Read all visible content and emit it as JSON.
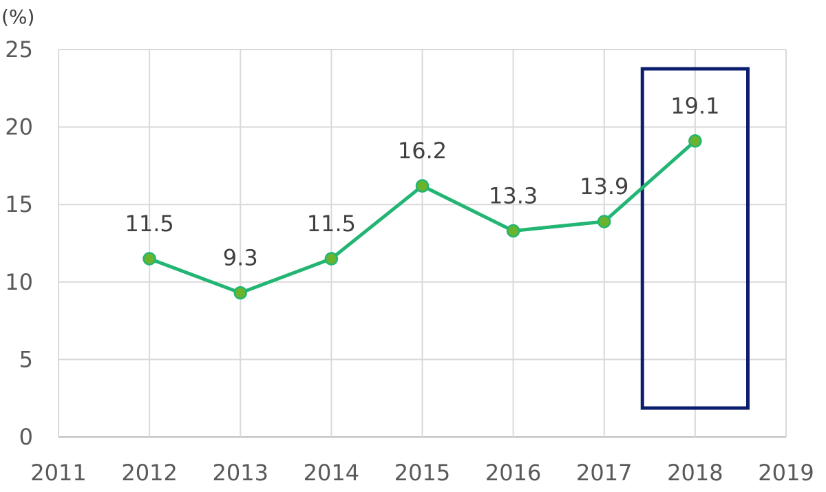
{
  "chart_data": {
    "type": "line",
    "unit_label": "(%)",
    "x_ticks": [
      2011,
      2012,
      2013,
      2014,
      2015,
      2016,
      2017,
      2018,
      2019
    ],
    "y_ticks": [
      0,
      5,
      10,
      15,
      20,
      25
    ],
    "xlim": [
      2011,
      2019
    ],
    "ylim": [
      0,
      25
    ],
    "grid": true,
    "series": [
      {
        "x": [
          2012,
          2013,
          2014,
          2015,
          2016,
          2017,
          2018
        ],
        "values": [
          11.5,
          9.3,
          11.5,
          16.2,
          13.3,
          13.9,
          19.1
        ],
        "labels": [
          "11.5",
          "9.3",
          "11.5",
          "16.2",
          "13.3",
          "13.9",
          "19.1"
        ],
        "color": "#22b573",
        "marker_color": "#6ab42d"
      }
    ],
    "highlight": {
      "x": 2018,
      "color": "#0c1e6e"
    }
  }
}
